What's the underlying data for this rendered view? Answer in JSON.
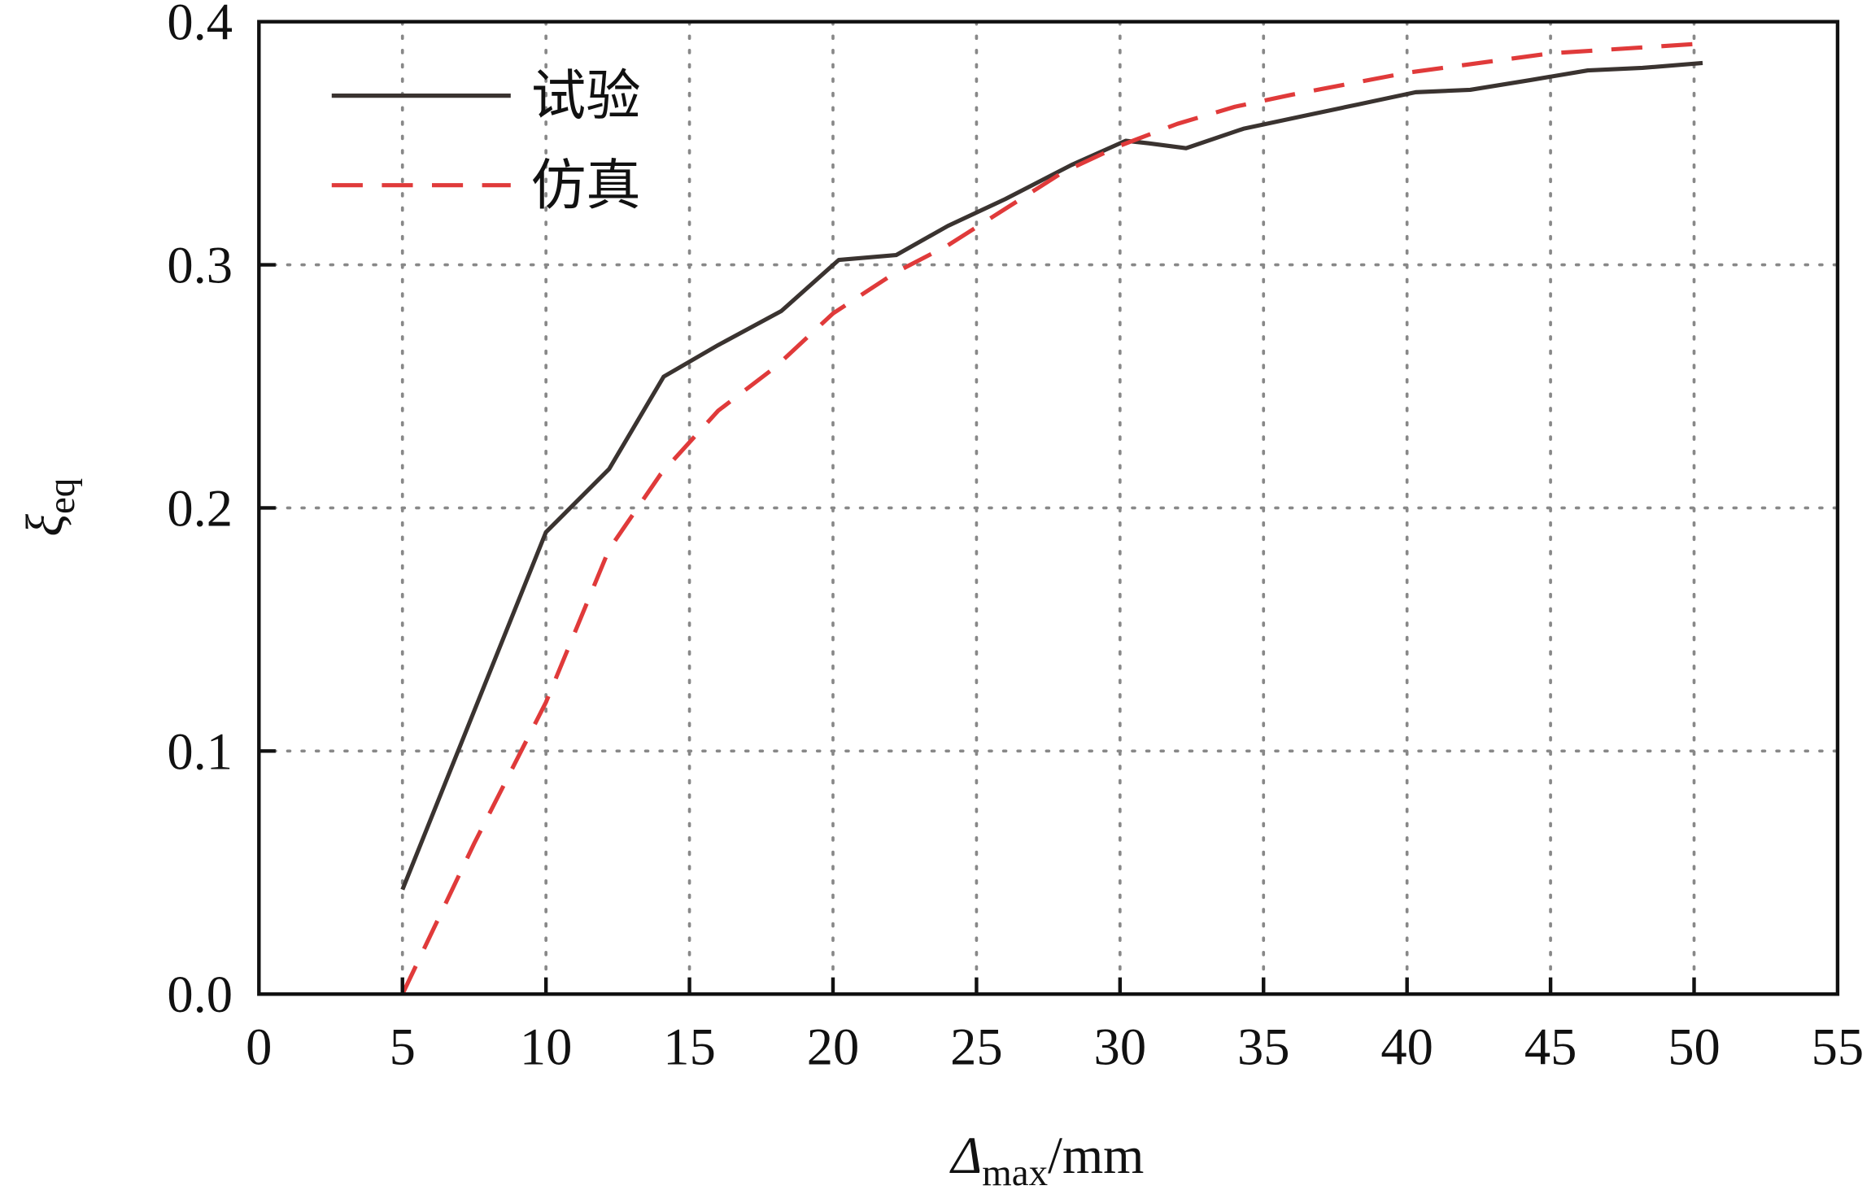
{
  "chart_data": {
    "type": "line",
    "title": "",
    "xlabel_symbol": "Δ",
    "xlabel_sub": "max",
    "xlabel_unit": "/mm",
    "ylabel_symbol": "ξ",
    "ylabel_sub": "eq",
    "xlim": [
      0,
      55
    ],
    "ylim": [
      0,
      0.4
    ],
    "xticks": [
      "0",
      "5",
      "10",
      "15",
      "20",
      "25",
      "30",
      "35",
      "40",
      "45",
      "50",
      "55"
    ],
    "yticks": [
      "0.0",
      "0.1",
      "0.2",
      "0.3",
      "0.4"
    ],
    "grid": true,
    "legend_position": "top-left",
    "series": [
      {
        "name": "试验",
        "style": "solid",
        "color": "#3a3330",
        "x": [
          5,
          10,
          12.2,
          14.1,
          16,
          18.2,
          20.2,
          22.2,
          24,
          26,
          28.3,
          30.2,
          31,
          32.3,
          34.3,
          36.3,
          38.3,
          40.3,
          42.2,
          44.3,
          46.3,
          48.2,
          50.3
        ],
        "y": [
          0.043,
          0.19,
          0.216,
          0.254,
          0.267,
          0.281,
          0.302,
          0.304,
          0.316,
          0.327,
          0.341,
          0.351,
          0.35,
          0.348,
          0.356,
          0.361,
          0.366,
          0.371,
          0.372,
          0.376,
          0.38,
          0.381,
          0.383
        ]
      },
      {
        "name": "仿真",
        "style": "dashed",
        "color": "#e03a3a",
        "x": [
          5,
          7.5,
          10,
          12.2,
          14,
          16,
          18,
          20,
          22.2,
          24,
          26,
          28,
          30,
          32,
          34,
          36,
          40,
          45,
          50.3
        ],
        "y": [
          0.0,
          0.062,
          0.12,
          0.183,
          0.214,
          0.24,
          0.258,
          0.28,
          0.297,
          0.308,
          0.323,
          0.338,
          0.349,
          0.358,
          0.365,
          0.37,
          0.379,
          0.387,
          0.391
        ]
      }
    ]
  }
}
